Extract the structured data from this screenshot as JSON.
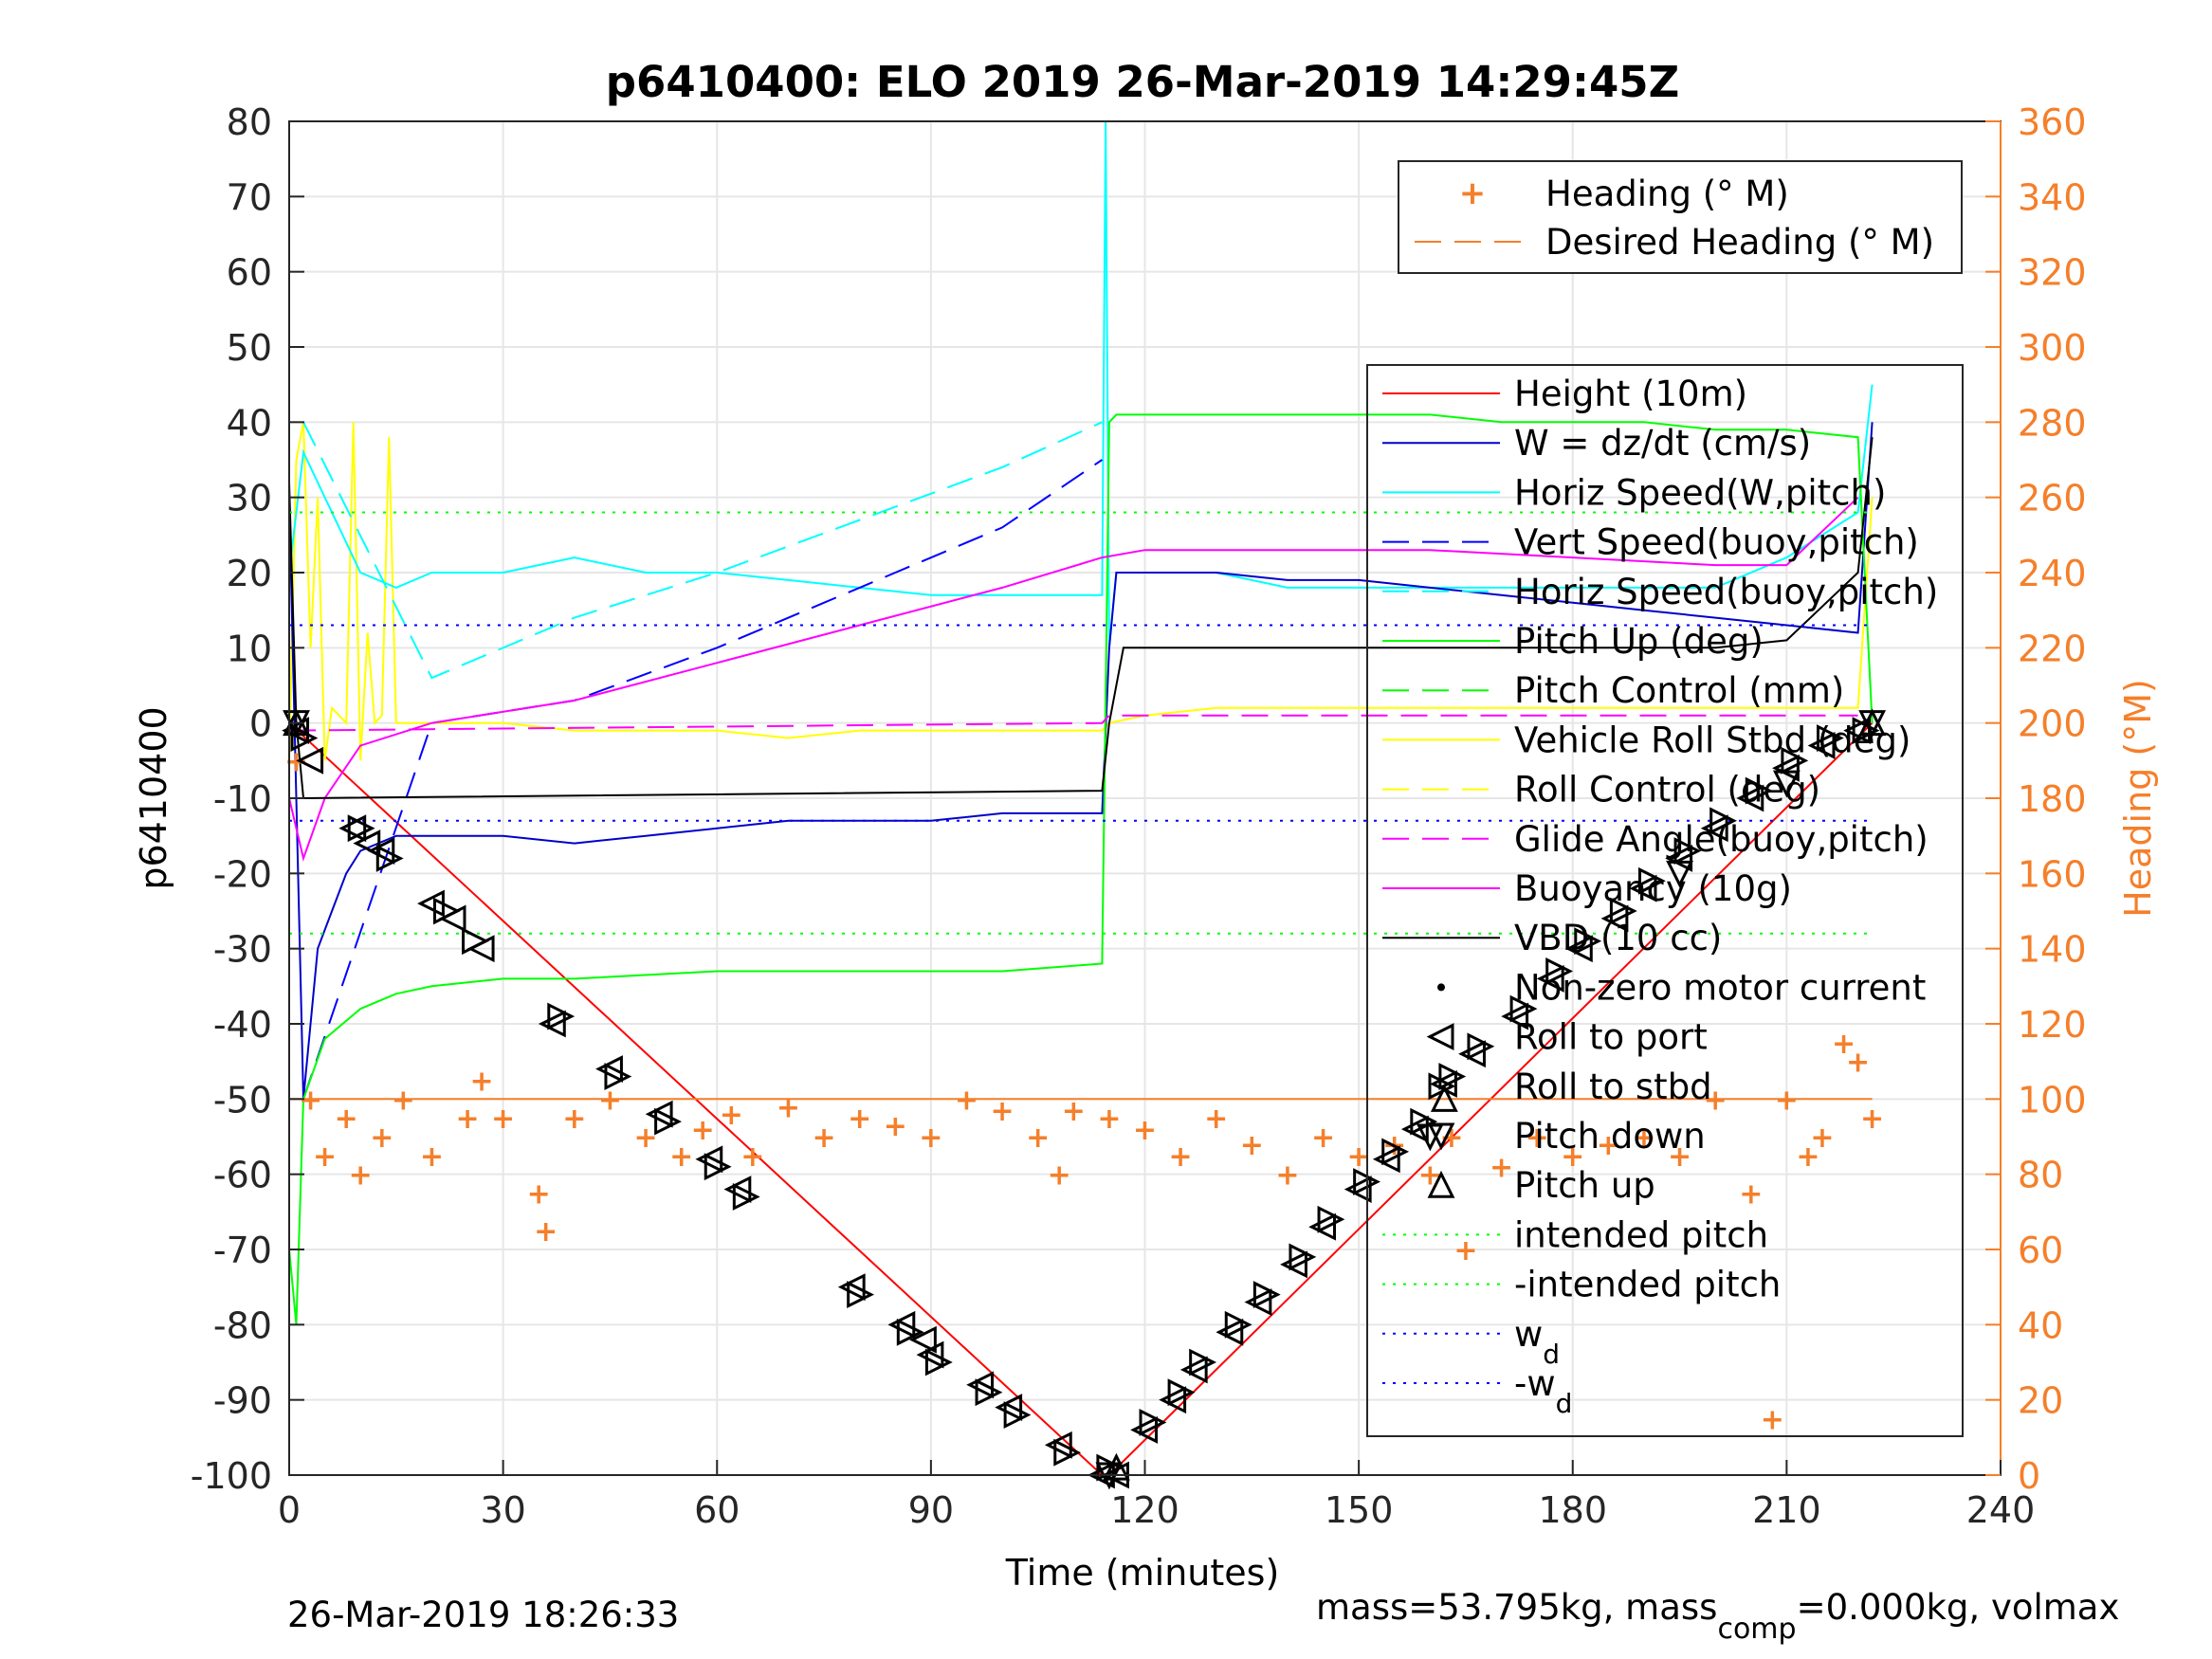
{
  "chart_data": {
    "type": "line",
    "title": "p6410400: ELO 2019 26-Mar-2019 14:29:45Z",
    "xlabel": "Time (minutes)",
    "ylabel_left": "p6410400",
    "ylabel_right": "Heading (°M)",
    "xlim": [
      0,
      240
    ],
    "ylim_left": [
      -100,
      80
    ],
    "ylim_right": [
      0,
      360
    ],
    "x_ticks": [
      0,
      30,
      60,
      90,
      120,
      150,
      180,
      210,
      240
    ],
    "y_ticks_left": [
      80,
      70,
      60,
      50,
      40,
      30,
      20,
      10,
      0,
      -10,
      -20,
      -30,
      -40,
      -50,
      -60,
      -70,
      -80,
      -90,
      -100
    ],
    "y_ticks_right": [
      360,
      340,
      320,
      300,
      280,
      260,
      240,
      220,
      200,
      180,
      160,
      140,
      120,
      100,
      80,
      60,
      40,
      20,
      0
    ],
    "grid": true,
    "colors": {
      "height": "#ff0000",
      "w": "#0000cc",
      "horiz_speed": "#00ffff",
      "vert_speed": "#0000ff",
      "pitch": "#00ff00",
      "roll": "#ffff00",
      "glide": "#ff00ff",
      "buoyancy": "#ff00ff",
      "vbd": "#000000",
      "heading": "#f57f2a",
      "right_axis": "#f57f2a"
    },
    "legend_heading": {
      "placement": "top-right",
      "entries": [
        "Heading (° M)",
        "Desired Heading (° M)"
      ]
    },
    "legend_main": {
      "placement": "right",
      "entries": [
        "Height (10m)",
        "W = dz/dt (cm/s)",
        "Horiz Speed(W,pitch)",
        "Vert Speed(buoy,pitch)",
        "Horiz Speed(buoy,pitch)",
        "Pitch Up (deg)",
        "Pitch Control (mm)",
        "Vehicle Roll Stbd (deg)",
        "Roll Control (deg)",
        "Glide Angle(buoy,pitch)",
        "Buoyancy (10g)",
        "VBD (10 cc)",
        "Non-zero motor current",
        "Roll to port",
        "Roll to stbd",
        "Pitch down",
        "Pitch up",
        "intended pitch",
        "-intended pitch",
        "w",
        "-w"
      ],
      "subscript": "d"
    },
    "series": [
      {
        "name": "Height (10m)",
        "x": [
          0,
          114,
          115,
          222
        ],
        "y": [
          0,
          -100,
          -100,
          0
        ]
      },
      {
        "name": "Vehicle Roll Stbd (deg)",
        "x": [
          0,
          1,
          2,
          3,
          4,
          5,
          6,
          7,
          8,
          9,
          10,
          11,
          12,
          13,
          14,
          15,
          20,
          30,
          40,
          50,
          60,
          70,
          80,
          90,
          100,
          110,
          114,
          115,
          120,
          130,
          140,
          150,
          160,
          170,
          180,
          190,
          200,
          210,
          220,
          222
        ],
        "y": [
          -5,
          35,
          40,
          10,
          30,
          -5,
          2,
          1,
          0,
          40,
          -5,
          12,
          0,
          1,
          38,
          0,
          0,
          0,
          -1,
          -1,
          -1,
          -2,
          -1,
          -1,
          -1,
          -1,
          -1,
          0,
          1,
          2,
          2,
          2,
          2,
          2,
          2,
          2,
          2,
          2,
          2,
          30
        ]
      },
      {
        "name": "Horiz Speed(W,pitch)",
        "x": [
          0,
          2,
          5,
          10,
          15,
          20,
          30,
          40,
          50,
          60,
          70,
          80,
          90,
          100,
          110,
          114,
          114.5,
          115,
          116,
          120,
          130,
          140,
          150,
          160,
          170,
          180,
          190,
          200,
          210,
          220,
          222
        ],
        "y": [
          20,
          36,
          30,
          20,
          18,
          20,
          20,
          22,
          20,
          20,
          19,
          18,
          17,
          17,
          17,
          17,
          80,
          10,
          20,
          20,
          20,
          18,
          18,
          18,
          18,
          18,
          18,
          18,
          22,
          28,
          45
        ]
      },
      {
        "name": "Vert Speed(buoy,pitch)",
        "x": [
          2,
          20,
          40,
          60,
          80,
          100,
          114
        ],
        "y": [
          -50,
          0,
          3,
          10,
          18,
          26,
          35
        ]
      },
      {
        "name": "Horiz Speed(buoy,pitch)",
        "x": [
          2,
          20,
          40,
          60,
          80,
          100,
          114
        ],
        "y": [
          40,
          6,
          14,
          20,
          27,
          34,
          40
        ]
      },
      {
        "name": "W = dz/dt (cm/s)",
        "x": [
          0,
          2,
          4,
          6,
          8,
          10,
          15,
          20,
          30,
          40,
          50,
          60,
          70,
          80,
          90,
          100,
          110,
          114,
          115,
          116,
          120,
          130,
          140,
          150,
          160,
          170,
          180,
          190,
          200,
          210,
          220,
          222
        ],
        "y": [
          30,
          -50,
          -30,
          -25,
          -20,
          -17,
          -15,
          -15,
          -15,
          -16,
          -15,
          -14,
          -13,
          -13,
          -13,
          -12,
          -12,
          -12,
          10,
          20,
          20,
          20,
          19,
          19,
          18,
          17,
          16,
          15,
          14,
          13,
          12,
          40
        ]
      },
      {
        "name": "Pitch Up (deg)",
        "x": [
          0,
          1,
          2,
          5,
          10,
          15,
          20,
          30,
          40,
          60,
          80,
          100,
          114,
          115,
          116,
          120,
          130,
          140,
          150,
          160,
          170,
          180,
          190,
          200,
          210,
          220,
          222
        ],
        "y": [
          -70,
          -80,
          -50,
          -42,
          -38,
          -36,
          -35,
          -34,
          -34,
          -33,
          -33,
          -33,
          -32,
          40,
          41,
          41,
          41,
          41,
          41,
          41,
          40,
          40,
          40,
          39,
          39,
          38,
          0
        ]
      },
      {
        "name": "Buoyancy (10g)",
        "x": [
          0,
          2,
          5,
          10,
          20,
          40,
          60,
          80,
          100,
          114,
          120,
          140,
          160,
          180,
          200,
          210,
          220
        ],
        "y": [
          -10,
          -18,
          -10,
          -3,
          0,
          3,
          8,
          13,
          18,
          22,
          23,
          23,
          23,
          22,
          21,
          21,
          30
        ]
      },
      {
        "name": "Glide Angle(buoy,pitch)",
        "x": [
          0,
          114,
          115,
          220
        ],
        "y": [
          -1,
          0,
          1,
          1
        ]
      },
      {
        "name": "VBD (10 cc)",
        "x": [
          0,
          1,
          2,
          114,
          115,
          117,
          200,
          210,
          220,
          222
        ],
        "y": [
          32,
          0,
          -10,
          -9,
          0,
          10,
          10,
          11,
          20,
          38
        ]
      },
      {
        "name": "intended pitch",
        "x": [
          0,
          222
        ],
        "y": [
          28,
          28
        ]
      },
      {
        "name": "-intended pitch",
        "x": [
          0,
          222
        ],
        "y": [
          -28,
          -28
        ]
      },
      {
        "name": "w",
        "x": [
          0,
          222
        ],
        "y": [
          13,
          13
        ]
      },
      {
        "name": "-w",
        "x": [
          0,
          222
        ],
        "y": [
          -13,
          -13
        ]
      },
      {
        "name": "Heading (° M)",
        "axis": "right",
        "x": [
          1,
          3,
          5,
          8,
          10,
          13,
          16,
          20,
          25,
          27,
          30,
          35,
          36,
          40,
          45,
          50,
          55,
          58,
          62,
          65,
          70,
          75,
          80,
          85,
          90,
          95,
          100,
          105,
          108,
          110,
          115,
          120,
          125,
          130,
          135,
          140,
          145,
          150,
          155,
          160,
          163,
          165,
          170,
          175,
          180,
          185,
          190,
          195,
          200,
          205,
          208,
          210,
          213,
          215,
          218,
          220,
          222
        ],
        "y": [
          190,
          100,
          85,
          95,
          80,
          90,
          100,
          85,
          95,
          105,
          95,
          75,
          65,
          95,
          100,
          90,
          85,
          92,
          96,
          85,
          98,
          90,
          95,
          93,
          90,
          100,
          97,
          90,
          80,
          97,
          95,
          92,
          85,
          95,
          88,
          80,
          90,
          85,
          88,
          80,
          90,
          60,
          82,
          90,
          85,
          88,
          90,
          85,
          100,
          75,
          15,
          100,
          85,
          90,
          115,
          110,
          95
        ]
      },
      {
        "name": "Desired Heading (° M)",
        "axis": "right",
        "x": [
          0,
          222
        ],
        "y": [
          100,
          100
        ]
      },
      {
        "name": "Roll to port",
        "marker": "triangle-left",
        "x": [
          1,
          3,
          9,
          11,
          13,
          20,
          23,
          27,
          37,
          45,
          52,
          59,
          63,
          79,
          86,
          89,
          90,
          97,
          101,
          108,
          114,
          116,
          120,
          124,
          127,
          132,
          136,
          141,
          145,
          150,
          154,
          158,
          162,
          166,
          172,
          177,
          181,
          186,
          190,
          195,
          200,
          205,
          210,
          215,
          220
        ],
        "y": [
          -1,
          -5,
          -14,
          -16,
          -17,
          -24,
          -26,
          -30,
          -40,
          -46,
          -52,
          -58,
          -62,
          -75,
          -80,
          -82,
          -84,
          -88,
          -91,
          -96,
          -100,
          -100,
          -94,
          -90,
          -86,
          -81,
          -77,
          -72,
          -67,
          -62,
          -58,
          -54,
          -48,
          -44,
          -39,
          -34,
          -30,
          -26,
          -22,
          -18,
          -14,
          -10,
          -6,
          -3,
          -1
        ]
      },
      {
        "name": "Roll to stbd",
        "marker": "triangle-right",
        "x": [
          2,
          10,
          14,
          22,
          26,
          38,
          46,
          53,
          60,
          64,
          80,
          87,
          91,
          98,
          102,
          109,
          115,
          121,
          125,
          128,
          133,
          137,
          142,
          146,
          151,
          155,
          159,
          163,
          167,
          173,
          178,
          182,
          187,
          191,
          196,
          201,
          206,
          211,
          216,
          221
        ],
        "y": [
          -2,
          -14,
          -18,
          -25,
          -29,
          -39,
          -47,
          -53,
          -59,
          -63,
          -76,
          -81,
          -85,
          -89,
          -92,
          -97,
          -99,
          -93,
          -89,
          -85,
          -80,
          -76,
          -71,
          -66,
          -61,
          -57,
          -53,
          -47,
          -43,
          -38,
          -33,
          -29,
          -25,
          -21,
          -17,
          -13,
          -9,
          -5,
          -2,
          -1
        ]
      },
      {
        "name": "Pitch down",
        "marker": "triangle-down",
        "x": [
          1,
          115,
          160,
          195,
          210,
          222
        ],
        "y": [
          0,
          -100,
          -55,
          -20,
          -8,
          0
        ]
      },
      {
        "name": "Pitch up",
        "marker": "triangle-up",
        "x": [
          1,
          116,
          162,
          222
        ],
        "y": [
          0,
          -99,
          -50,
          0
        ]
      }
    ]
  },
  "footer": {
    "timestamp": "26-Mar-2019 18:26:33",
    "mass_text_a": "mass=53.795kg, mass",
    "mass_sub": "comp",
    "mass_text_b": "=0.000kg, volmax"
  }
}
